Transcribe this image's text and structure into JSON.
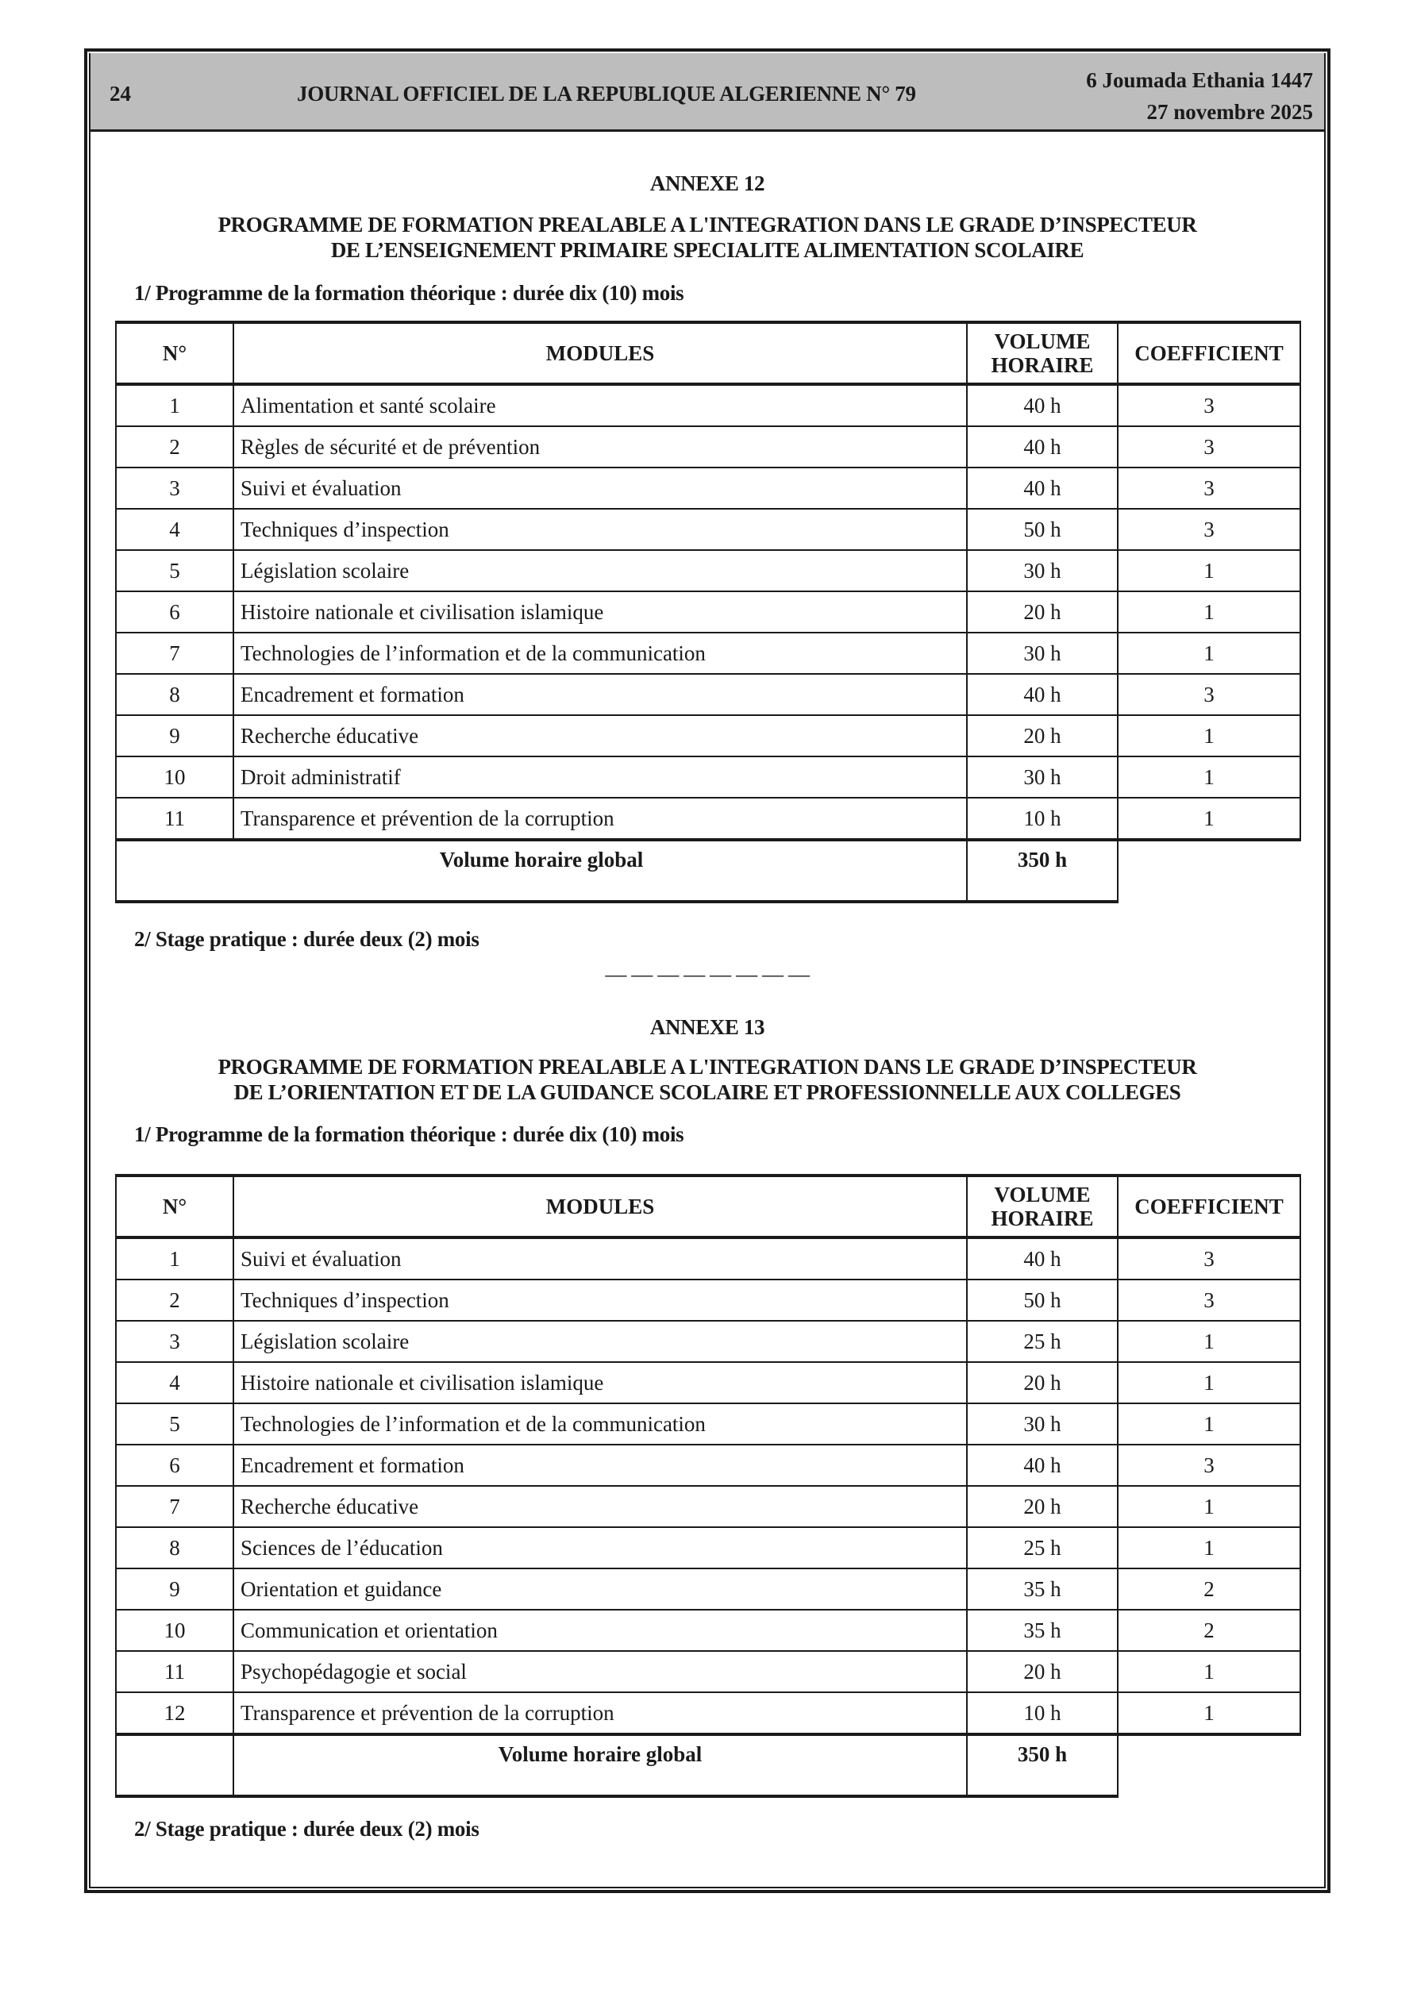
{
  "header": {
    "page_number": "24",
    "journal_title": "JOURNAL OFFICIEL DE LA REPUBLIQUE ALGERIENNE N° 79",
    "hijri_date": "6 Joumada Ethania 1447",
    "gregorian_date": "27 novembre 2025"
  },
  "columns": {
    "n": "N°",
    "modules": "MODULES",
    "volume": "VOLUME HORAIRE",
    "coef": "COEFFICIENT"
  },
  "annexe12": {
    "heading": "ANNEXE 12",
    "title_line1": "PROGRAMME DE FORMATION PREALABLE A L'INTEGRATION DANS LE GRADE  D’INSPECTEUR",
    "title_line2": "DE L’ENSEIGNEMENT PRIMAIRE SPECIALITE ALIMENTATION SCOLAIRE",
    "theory": "1/ Programme de la formation théorique : durée dix (10) mois",
    "rows": [
      [
        "1",
        "Alimentation et santé scolaire",
        "40 h",
        "3"
      ],
      [
        "2",
        "Règles de sécurité et de prévention",
        "40 h",
        "3"
      ],
      [
        "3",
        "Suivi et évaluation",
        "40 h",
        "3"
      ],
      [
        "4",
        "Techniques d’inspection",
        "50 h",
        "3"
      ],
      [
        "5",
        "Législation scolaire",
        "30 h",
        "1"
      ],
      [
        "6",
        "Histoire nationale et civilisation islamique",
        "20 h",
        "1"
      ],
      [
        "7",
        "Technologies de l’information et de la communication",
        "30 h",
        "1"
      ],
      [
        "8",
        "Encadrement et formation",
        "40 h",
        "3"
      ],
      [
        "9",
        "Recherche éducative",
        "20 h",
        "1"
      ],
      [
        "10",
        "Droit administratif",
        "30 h",
        "1"
      ],
      [
        "11",
        "Transparence et prévention de la corruption",
        "10 h",
        "1"
      ]
    ],
    "total_label": "Volume horaire global",
    "total_value": "350 h",
    "stage": "2/ Stage pratique : durée deux (2) mois"
  },
  "separator": "— — — — — — — —",
  "annexe13": {
    "heading": "ANNEXE 13",
    "title_line1": "PROGRAMME DE FORMATION PREALABLE A L'INTEGRATION DANS LE GRADE D’INSPECTEUR",
    "title_line2": "DE L’ORIENTATION ET DE LA GUIDANCE SCOLAIRE ET PROFESSIONNELLE AUX COLLEGES",
    "theory": "1/ Programme de la formation théorique : durée dix (10) mois",
    "rows": [
      [
        "1",
        "Suivi et évaluation",
        "40 h",
        "3"
      ],
      [
        "2",
        "Techniques d’inspection",
        "50 h",
        "3"
      ],
      [
        "3",
        "Législation scolaire",
        "25 h",
        "1"
      ],
      [
        "4",
        "Histoire nationale et civilisation islamique",
        "20 h",
        "1"
      ],
      [
        "5",
        "Technologies de l’information et de la communication",
        "30 h",
        "1"
      ],
      [
        "6",
        "Encadrement et formation",
        "40 h",
        "3"
      ],
      [
        "7",
        "Recherche éducative",
        "20 h",
        "1"
      ],
      [
        "8",
        "Sciences de l’éducation",
        "25 h",
        "1"
      ],
      [
        "9",
        "Orientation et guidance",
        "35 h",
        "2"
      ],
      [
        "10",
        "Communication et orientation",
        "35 h",
        "2"
      ],
      [
        "11",
        "Psychopédagogie et social",
        "20 h",
        "1"
      ],
      [
        "12",
        "Transparence et prévention de la corruption",
        "10 h",
        "1"
      ]
    ],
    "total_label": "Volume horaire global",
    "total_value": "350 h",
    "stage": "2/ Stage pratique : durée deux (2) mois"
  }
}
